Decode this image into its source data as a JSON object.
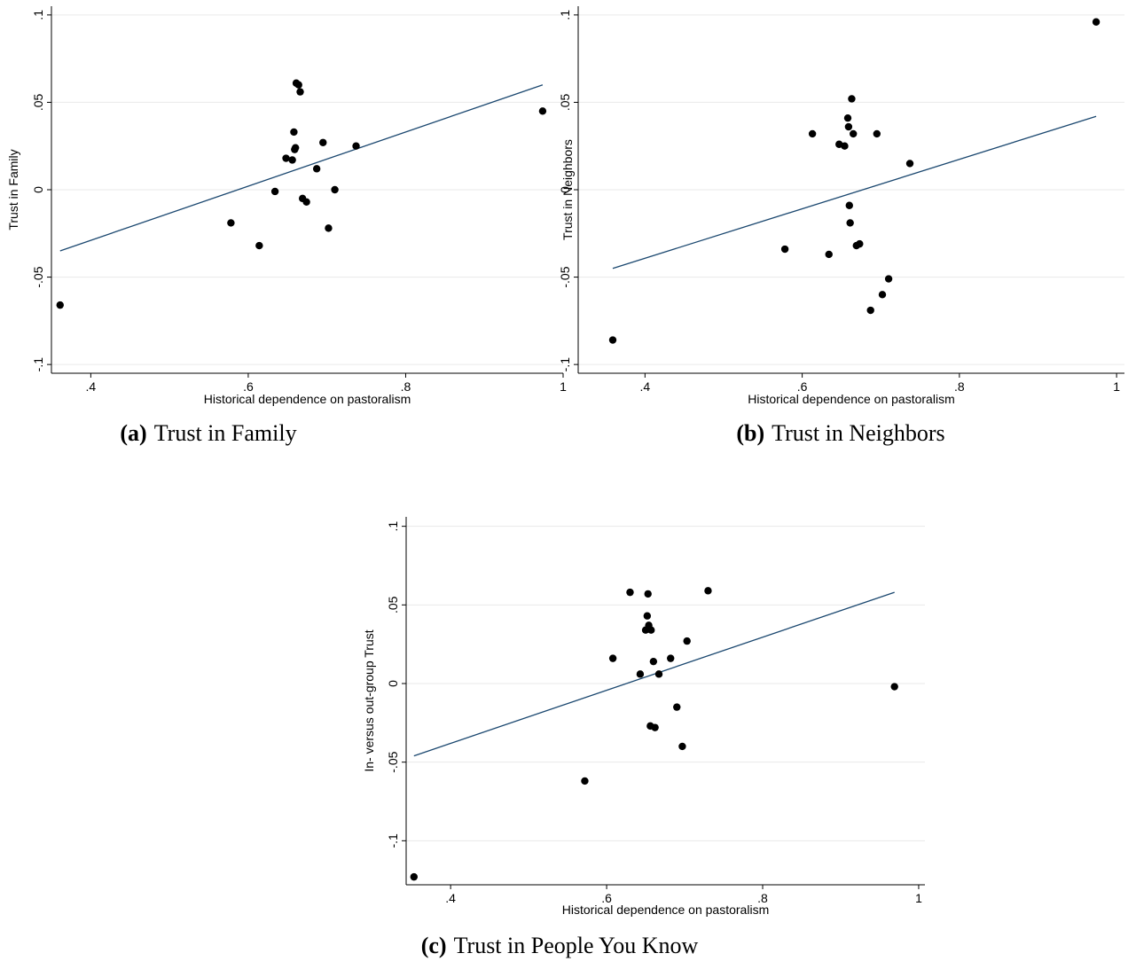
{
  "chart_data": [
    {
      "type": "scatter",
      "caption_label": "(a)",
      "caption": "Trust in Family",
      "xlabel": "Historical dependence on pastoralism",
      "ylabel": "Trust in Family",
      "x": [
        0.361,
        0.614,
        0.578,
        0.634,
        0.648,
        0.656,
        0.658,
        0.66,
        0.659,
        0.661,
        0.664,
        0.666,
        0.669,
        0.674,
        0.687,
        0.695,
        0.702,
        0.71,
        0.737,
        0.974
      ],
      "y": [
        -0.066,
        -0.032,
        -0.019,
        -0.001,
        0.018,
        0.017,
        0.033,
        0.024,
        0.023,
        0.061,
        0.06,
        0.056,
        -0.005,
        -0.007,
        0.012,
        0.027,
        -0.022,
        0.0,
        0.025,
        0.045
      ],
      "color": "#000000",
      "fit": {
        "x": [
          0.361,
          0.974
        ],
        "y": [
          -0.035,
          0.06
        ],
        "color": "#1a476f"
      },
      "xlim": [
        0.35,
        1.0
      ],
      "ylim": [
        -0.105,
        0.105
      ],
      "xticks": [
        {
          "value": 0.4,
          "label": ".4"
        },
        {
          "value": 0.6,
          "label": ".6"
        },
        {
          "value": 0.8,
          "label": ".8"
        },
        1
      ],
      "yticks": [
        {
          "value": -0.1,
          "label": "-.1"
        },
        {
          "value": -0.05,
          "label": "-.05"
        },
        0,
        {
          "value": 0.05,
          "label": ".05"
        },
        {
          "value": 0.1,
          "label": ".1"
        }
      ],
      "grid": true
    },
    {
      "type": "scatter",
      "caption_label": "(b)",
      "caption": "Trust in Neighbors",
      "xlabel": "Historical dependence on pastoralism",
      "ylabel": "Trust in Neighbors",
      "x": [
        0.359,
        0.578,
        0.613,
        0.634,
        0.647,
        0.654,
        0.658,
        0.659,
        0.66,
        0.661,
        0.663,
        0.665,
        0.669,
        0.673,
        0.687,
        0.695,
        0.702,
        0.71,
        0.737,
        0.974
      ],
      "y": [
        -0.086,
        -0.034,
        0.032,
        -0.037,
        0.026,
        0.025,
        0.041,
        0.036,
        -0.009,
        -0.019,
        0.052,
        0.032,
        -0.032,
        -0.031,
        -0.069,
        0.032,
        -0.06,
        -0.051,
        0.015,
        0.096
      ],
      "color": "#000000",
      "fit": {
        "x": [
          0.359,
          0.974
        ],
        "y": [
          -0.045,
          0.042
        ],
        "color": "#1a476f"
      },
      "xlim": [
        0.315,
        1.01
      ],
      "ylim": [
        -0.105,
        0.105
      ],
      "xticks": [
        {
          "value": 0.4,
          "label": ".4"
        },
        {
          "value": 0.6,
          "label": ".6"
        },
        {
          "value": 0.8,
          "label": ".8"
        },
        1
      ],
      "yticks": [
        {
          "value": -0.1,
          "label": "-.1"
        },
        {
          "value": -0.05,
          "label": "-.05"
        },
        0,
        {
          "value": 0.05,
          "label": ".05"
        },
        {
          "value": 0.1,
          "label": ".1"
        }
      ],
      "grid": true
    },
    {
      "type": "scatter",
      "caption_label": "(c)",
      "caption": "Trust in People You Know",
      "xlabel": "Historical dependence on pastoralism",
      "ylabel": "In- versus out-group Trust",
      "x": [
        0.353,
        0.572,
        0.608,
        0.63,
        0.643,
        0.65,
        0.652,
        0.653,
        0.654,
        0.657,
        0.656,
        0.66,
        0.662,
        0.667,
        0.682,
        0.69,
        0.697,
        0.703,
        0.73,
        0.969
      ],
      "y": [
        -0.123,
        -0.062,
        0.016,
        0.058,
        0.006,
        0.034,
        0.043,
        0.057,
        0.037,
        0.034,
        -0.027,
        0.014,
        -0.028,
        0.006,
        0.016,
        -0.015,
        -0.04,
        0.027,
        0.059,
        -0.002
      ],
      "color": "#000000",
      "fit": {
        "x": [
          0.353,
          0.969
        ],
        "y": [
          -0.046,
          0.058
        ],
        "color": "#1a476f"
      },
      "xlim": [
        0.343,
        1.008
      ],
      "ylim": [
        -0.128,
        0.106
      ],
      "xticks": [
        {
          "value": 0.4,
          "label": ".4"
        },
        {
          "value": 0.6,
          "label": ".6"
        },
        {
          "value": 0.8,
          "label": ".8"
        },
        1
      ],
      "yticks": [
        {
          "value": -0.1,
          "label": "-.1"
        },
        {
          "value": -0.05,
          "label": "-.05"
        },
        0,
        {
          "value": 0.05,
          "label": ".05"
        },
        {
          "value": 0.1,
          "label": ".1"
        }
      ],
      "grid": true
    }
  ]
}
